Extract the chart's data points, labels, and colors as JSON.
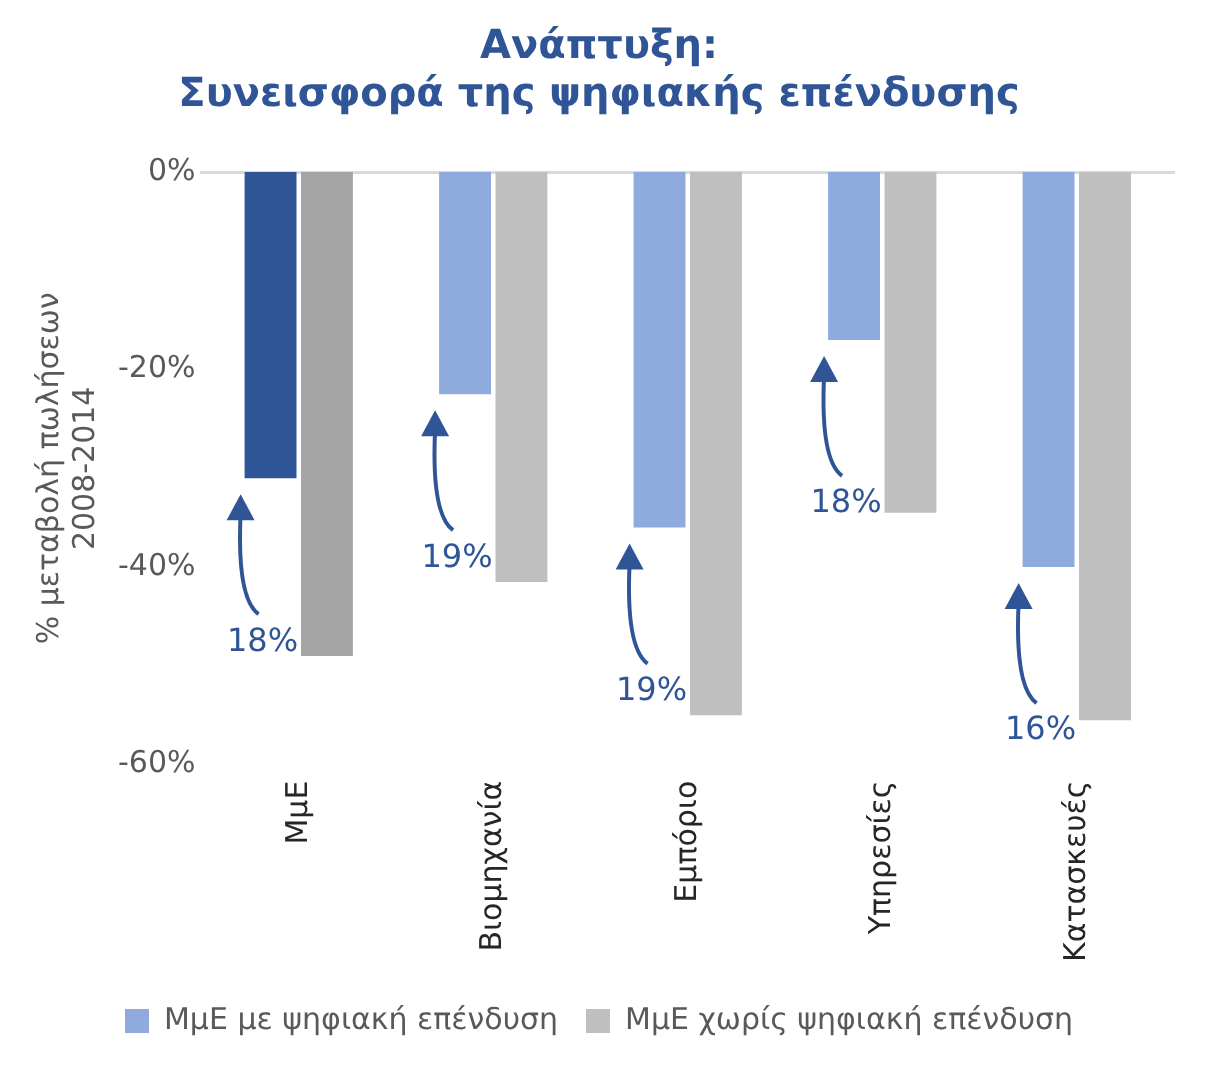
{
  "chart_data": {
    "type": "bar",
    "title": "Ανάπτυξη:\nΣυνεισφορά της ψηφιακής επένδυσης",
    "ylabel": "% μεταβολή πωλήσεων\n2008-2014",
    "categories": [
      "ΜμΕ",
      "Βιομηχανία",
      "Εμπόριο",
      "Υπηρεσίες",
      "Κατασκευές"
    ],
    "series": [
      {
        "name": "ΜμΕ με ψηφιακή επένδυση",
        "color": "#8faadc",
        "colors": [
          "#2f5597",
          "#8faadc",
          "#8faadc",
          "#8faadc",
          "#8faadc"
        ],
        "values": [
          -31,
          -22.5,
          -36,
          -17,
          -40
        ]
      },
      {
        "name": "ΜμΕ χωρίς ψηφιακή επένδυση",
        "color": "#bfbfbf",
        "colors": [
          "#a5a5a5",
          "#bfbfbf",
          "#bfbfbf",
          "#bfbfbf",
          "#bfbfbf"
        ],
        "values": [
          -49,
          -41.5,
          -55,
          -34.5,
          -55.5
        ]
      }
    ],
    "ylim": [
      -60,
      0
    ],
    "yticks": [
      {
        "value": 0,
        "label": "0%"
      },
      {
        "value": -20,
        "label": "-20%"
      },
      {
        "value": -40,
        "label": "-40%"
      },
      {
        "value": -60,
        "label": "-60%"
      }
    ],
    "grid": false,
    "legend": "bottom",
    "annotations": [
      {
        "text": "18%",
        "x": "ΜμΕ"
      },
      {
        "text": "19%",
        "x": "Βιομηχανία"
      },
      {
        "text": "19%",
        "x": "Εμπόριο"
      },
      {
        "text": "18%",
        "x": "Υπηρεσίες"
      },
      {
        "text": "16%",
        "x": "Κατασκευές"
      }
    ]
  }
}
